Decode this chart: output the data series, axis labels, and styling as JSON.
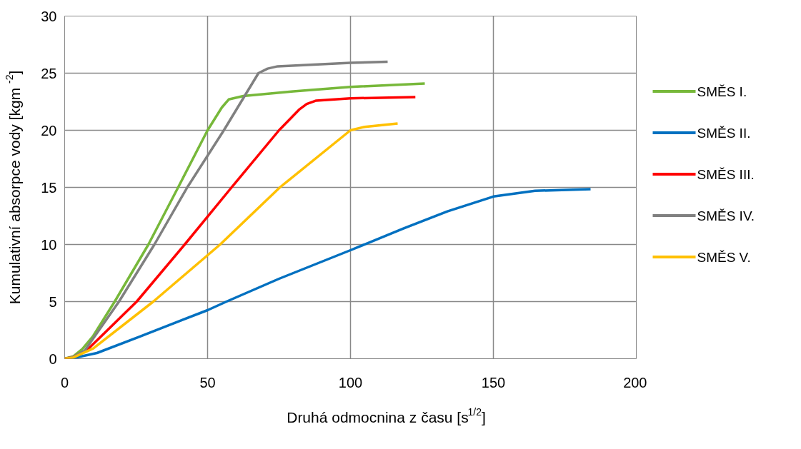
{
  "chart_data": {
    "type": "line",
    "xlabel": "Druhá odmocnina z času [s$^{1/2}$]",
    "ylabel": "Kumulativní absorpce vody  [kgm$^{-2}$]",
    "xlim": [
      0,
      200
    ],
    "ylim": [
      0,
      30
    ],
    "xticks": [
      0,
      50,
      100,
      150,
      200
    ],
    "yticks": [
      0,
      5,
      10,
      15,
      20,
      25,
      30
    ],
    "grid": true,
    "legend": "right",
    "marker": "none",
    "line_style": "solid",
    "series": [
      {
        "name": "SMĚS I.",
        "color": "#77b83a",
        "x": [
          0,
          3,
          6.2,
          10,
          17.5,
          29.3,
          39.7,
          50,
          55,
          57.4,
          62.5,
          80,
          100,
          126
        ],
        "values": [
          0,
          0.2,
          0.85,
          2,
          5,
          10,
          15,
          20,
          22,
          22.7,
          23.0,
          23.4,
          23.8,
          24.1
        ]
      },
      {
        "name": "SMĚS II.",
        "color": "#0070c0",
        "x": [
          0,
          3,
          11.3,
          25.9,
          50,
          56.6,
          75,
          100,
          118.5,
          133.9,
          150,
          164.6,
          184
        ],
        "values": [
          0,
          0.05,
          0.5,
          1.9,
          4.25,
          5,
          7,
          9.5,
          11.4,
          12.9,
          14.2,
          14.7,
          14.85
        ]
      },
      {
        "name": "SMĚS III.",
        "color": "#ff0000",
        "x": [
          0,
          3,
          8,
          25.2,
          42,
          58.4,
          75,
          82,
          84.7,
          88,
          100,
          122.7
        ],
        "values": [
          0,
          0.15,
          0.8,
          5,
          10,
          15,
          20,
          21.8,
          22.3,
          22.6,
          22.8,
          22.9
        ]
      },
      {
        "name": "SMĚS IV.",
        "color": "#808080",
        "x": [
          0,
          3,
          7,
          19,
          31.4,
          42.9,
          55.7,
          67.8,
          71,
          74.5,
          100,
          113
        ],
        "values": [
          0,
          0.15,
          0.7,
          5,
          10,
          15,
          20,
          25,
          25.4,
          25.6,
          25.9,
          26.0
        ]
      },
      {
        "name": "SMĚS V.",
        "color": "#ffc000",
        "x": [
          0,
          3,
          10,
          31,
          54.4,
          75.3,
          100,
          105,
          116.5
        ],
        "values": [
          0,
          0.1,
          0.9,
          5,
          10,
          15,
          20,
          20.3,
          20.6
        ]
      }
    ]
  }
}
